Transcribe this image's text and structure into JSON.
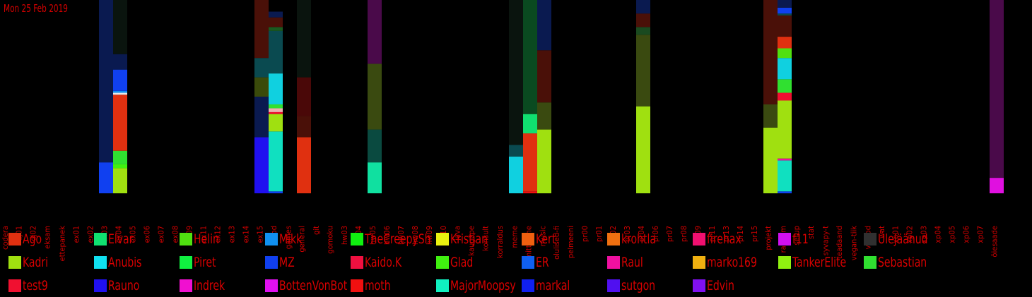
{
  "date": "Mon 25 Feb 2019",
  "chart_data": {
    "type": "bar",
    "stacked": true,
    "categories": [
      "codera",
      "dj01",
      "dj02",
      "eksam",
      "ettepanek",
      "ex01",
      "ex02",
      "ex03",
      "ex04",
      "ex05",
      "ex06",
      "ex07",
      "ex08",
      "ex09",
      "ex11",
      "ex12",
      "ex13",
      "ex14",
      "ex15",
      "food",
      "games",
      "general",
      "git",
      "gomoku",
      "hw03",
      "hw04",
      "hw05",
      "hw06",
      "hw07",
      "hw08",
      "hw09",
      "hw10",
      "java",
      "kaugõpe",
      "konsult",
      "korraldus",
      "meme",
      "mitteaine",
      "music",
      "olulised-fi",
      "pelmeeni",
      "pr00",
      "pr01",
      "pr02",
      "pr03",
      "pr04",
      "pr06",
      "pr07",
      "pr08",
      "pr09",
      "pr11",
      "pr13",
      "pr14",
      "pr15",
      "projekt",
      "random",
      "setup",
      "stat",
      "syvapy-t",
      "teadaand",
      "vegan-tiik",
      "videod",
      "wat",
      "xp01",
      "xp02",
      "xp03",
      "xp04",
      "xp05",
      "xp06",
      "xp07",
      "õiesaade"
    ],
    "series": [
      {
        "name": "Ago",
        "color": "#e03010"
      },
      {
        "name": "Elvar",
        "color": "#10e070"
      },
      {
        "name": "Helin",
        "color": "#50e010"
      },
      {
        "name": "Mikk",
        "color": "#1090f0"
      },
      {
        "name": "TheCreepySh",
        "color": "#10f010"
      },
      {
        "name": "Kristjan",
        "color": "#e8f010"
      },
      {
        "name": "Kert",
        "color": "#f06010"
      },
      {
        "name": "krohtla",
        "color": "#f07010"
      },
      {
        "name": "firehax",
        "color": "#f01070"
      },
      {
        "name": "f11",
        "color": "#d010f0"
      },
      {
        "name": "Ülejäänud",
        "color": "#303030"
      },
      {
        "name": "Kadri",
        "color": "#a0e010"
      },
      {
        "name": "Anubis",
        "color": "#10e0f0"
      },
      {
        "name": "Piret",
        "color": "#10f040"
      },
      {
        "name": "MZ",
        "color": "#1040f0"
      },
      {
        "name": "Kaido.K",
        "color": "#f01040"
      },
      {
        "name": "Glad",
        "color": "#40f010"
      },
      {
        "name": "ER",
        "color": "#1060f0"
      },
      {
        "name": "Raul",
        "color": "#f010a0"
      },
      {
        "name": "marko169",
        "color": "#f0b010"
      },
      {
        "name": "TankerElite",
        "color": "#90f010"
      },
      {
        "name": "Sebastian",
        "color": "#30e030"
      },
      {
        "name": "test9",
        "color": "#f01030"
      },
      {
        "name": "Rauno",
        "color": "#2010f0"
      },
      {
        "name": "Indrek",
        "color": "#f010d0"
      },
      {
        "name": "BottenVonBot",
        "color": "#e010f0"
      },
      {
        "name": "moth",
        "color": "#f01010"
      },
      {
        "name": "MajorMoopsy",
        "color": "#10f0c0"
      },
      {
        "name": "markal",
        "color": "#1020f0"
      },
      {
        "name": "sutgon",
        "color": "#5010f0"
      },
      {
        "name": "Edvin",
        "color": "#8010f0"
      }
    ],
    "ylim": [
      0,
      1
    ],
    "bars": [
      {
        "category": "ex03",
        "segments": [
          {
            "value": 0.16,
            "color": "#1040f0"
          },
          {
            "value": 0.84,
            "color": "#0a1a50"
          }
        ]
      },
      {
        "category": "ex04",
        "segments": [
          {
            "value": 0.13,
            "color": "#a0e010"
          },
          {
            "value": 0.02,
            "color": "#40f010"
          },
          {
            "value": 0.07,
            "color": "#30e030"
          },
          {
            "value": 0.29,
            "color": "#e03010"
          },
          {
            "value": 0.01,
            "color": "#e8e8e8"
          },
          {
            "value": 0.01,
            "color": "#1090f0"
          },
          {
            "value": 0.11,
            "color": "#1040f0"
          },
          {
            "value": 0.08,
            "color": "#0a1a50"
          },
          {
            "value": 0.28,
            "color": "#0a140e"
          }
        ]
      },
      {
        "category": "ex15",
        "segments": [
          {
            "value": 0.29,
            "color": "#2010f0"
          },
          {
            "value": 0.21,
            "color": "#0a1a50"
          },
          {
            "value": 0.1,
            "color": "#3a4a0a"
          },
          {
            "value": 0.1,
            "color": "#0a4a50"
          },
          {
            "value": 0.3,
            "color": "#4a1008"
          }
        ]
      },
      {
        "category": "food",
        "segments": [
          {
            "value": 0.01,
            "color": "#1040f0"
          },
          {
            "value": 0.31,
            "color": "#10e0c0"
          },
          {
            "value": 0.09,
            "color": "#a0e010"
          },
          {
            "value": 0.01,
            "color": "#f01030"
          },
          {
            "value": 0.02,
            "color": "#f0b0b0"
          },
          {
            "value": 0.02,
            "color": "#30e030"
          },
          {
            "value": 0.16,
            "color": "#10d0e0"
          },
          {
            "value": 0.22,
            "color": "#0a4a50"
          },
          {
            "value": 0.02,
            "color": "#1a5a20"
          },
          {
            "value": 0.05,
            "color": "#4a1008"
          },
          {
            "value": 0.03,
            "color": "#0a1a50"
          },
          {
            "value": 0.06,
            "color": "#000000"
          }
        ]
      },
      {
        "category": "general",
        "segments": [
          {
            "value": 0.29,
            "color": "#e03010"
          },
          {
            "value": 0.11,
            "color": "#4a1008"
          },
          {
            "value": 0.2,
            "color": "#4a0808"
          },
          {
            "value": 0.4,
            "color": "#0a140e"
          }
        ]
      },
      {
        "category": "hw05",
        "segments": [
          {
            "value": 0.16,
            "color": "#10e0a0"
          },
          {
            "value": 0.17,
            "color": "#0a4a40"
          },
          {
            "value": 0.34,
            "color": "#3a4a10"
          },
          {
            "value": 0.33,
            "color": "#4a0a4a"
          }
        ]
      },
      {
        "category": "meme",
        "segments": [
          {
            "value": 0.19,
            "color": "#10d0e0"
          },
          {
            "value": 0.06,
            "color": "#0a4a50"
          },
          {
            "value": 0.75,
            "color": "#0a140e"
          }
        ]
      },
      {
        "category": "mitteaine",
        "segments": [
          {
            "value": 0.01,
            "color": "#f01010"
          },
          {
            "value": 0.3,
            "color": "#e03010"
          },
          {
            "value": 0.1,
            "color": "#10e070"
          },
          {
            "value": 0.59,
            "color": "#0a4a20"
          }
        ]
      },
      {
        "category": "music",
        "segments": [
          {
            "value": 0.33,
            "color": "#a0e010"
          },
          {
            "value": 0.14,
            "color": "#3a4a10"
          },
          {
            "value": 0.27,
            "color": "#4a1008"
          },
          {
            "value": 0.26,
            "color": "#0a1a50"
          }
        ]
      },
      {
        "category": "pr04",
        "segments": [
          {
            "value": 0.45,
            "color": "#a0e010"
          },
          {
            "value": 0.37,
            "color": "#3a4a10"
          },
          {
            "value": 0.04,
            "color": "#1a4a20"
          },
          {
            "value": 0.07,
            "color": "#4a1008"
          },
          {
            "value": 0.07,
            "color": "#0a1a50"
          }
        ]
      },
      {
        "category": "projekt",
        "segments": [
          {
            "value": 0.34,
            "color": "#a0e010"
          },
          {
            "value": 0.12,
            "color": "#3a4a10"
          },
          {
            "value": 0.54,
            "color": "#4a1008"
          }
        ]
      },
      {
        "category": "random",
        "segments": [
          {
            "value": 0.01,
            "color": "#1040f0"
          },
          {
            "value": 0.16,
            "color": "#10e0c0"
          },
          {
            "value": 0.01,
            "color": "#f010a0"
          },
          {
            "value": 0.3,
            "color": "#a0e010"
          },
          {
            "value": 0.04,
            "color": "#f01030"
          },
          {
            "value": 0.07,
            "color": "#30e030"
          },
          {
            "value": 0.11,
            "color": "#10d0e0"
          },
          {
            "value": 0.05,
            "color": "#50e010"
          },
          {
            "value": 0.06,
            "color": "#e03010"
          },
          {
            "value": 0.11,
            "color": "#4a1008"
          },
          {
            "value": 0.01,
            "color": "#0a4a50"
          },
          {
            "value": 0.03,
            "color": "#1040f0"
          },
          {
            "value": 0.04,
            "color": "#0a1a50"
          }
        ]
      },
      {
        "category": "õiesaade",
        "segments": [
          {
            "value": 0.08,
            "color": "#e010e0"
          },
          {
            "value": 0.92,
            "color": "#4a0a4a"
          }
        ]
      }
    ]
  },
  "legend": [
    {
      "name": "Ago",
      "color": "#e03010"
    },
    {
      "name": "Elvar",
      "color": "#10e070"
    },
    {
      "name": "Helin",
      "color": "#50e010"
    },
    {
      "name": "Mikk",
      "color": "#1090f0"
    },
    {
      "name": "TheCreepySh",
      "color": "#10f010"
    },
    {
      "name": "Kristjan",
      "color": "#e8f010"
    },
    {
      "name": "Kert",
      "color": "#f06010"
    },
    {
      "name": "krohtla",
      "color": "#f07010"
    },
    {
      "name": "firehax",
      "color": "#f01070"
    },
    {
      "name": "f11",
      "color": "#d010f0"
    },
    {
      "name": "Ülejäänud",
      "color": "#303030"
    },
    {
      "name": "Kadri",
      "color": "#a0e010"
    },
    {
      "name": "Anubis",
      "color": "#10e0f0"
    },
    {
      "name": "Piret",
      "color": "#10f040"
    },
    {
      "name": "MZ",
      "color": "#1040f0"
    },
    {
      "name": "Kaido.K",
      "color": "#f01040"
    },
    {
      "name": "Glad",
      "color": "#40f010"
    },
    {
      "name": "ER",
      "color": "#1060f0"
    },
    {
      "name": "Raul",
      "color": "#f010a0"
    },
    {
      "name": "marko169",
      "color": "#f0b010"
    },
    {
      "name": "TankerElite",
      "color": "#90f010"
    },
    {
      "name": "Sebastian",
      "color": "#30e030"
    },
    {
      "name": "test9",
      "color": "#f01030"
    },
    {
      "name": "Rauno",
      "color": "#2010f0"
    },
    {
      "name": "Indrek",
      "color": "#f010d0"
    },
    {
      "name": "BottenVonBot",
      "color": "#e010f0"
    },
    {
      "name": "moth",
      "color": "#f01010"
    },
    {
      "name": "MajorMoopsy",
      "color": "#10f0c0"
    },
    {
      "name": "markal",
      "color": "#1020f0"
    },
    {
      "name": "sutgon",
      "color": "#5010f0"
    },
    {
      "name": "Edvin",
      "color": "#8010f0"
    }
  ]
}
